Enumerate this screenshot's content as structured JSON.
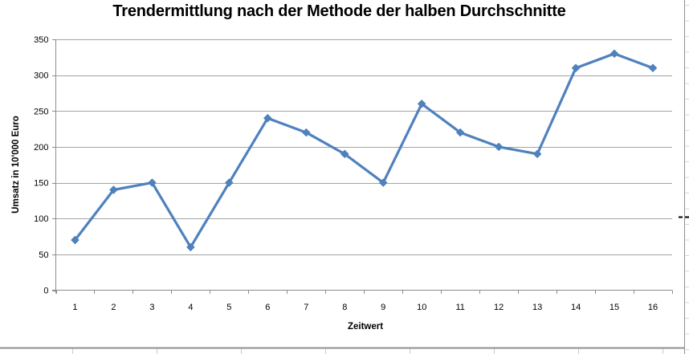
{
  "chart_data": {
    "type": "line",
    "title": "Trendermittlung nach der Methode der halben Durchschnitte",
    "xlabel": "Zeitwert",
    "ylabel": "Umsatz in 10'000 Euro",
    "categories": [
      "1",
      "2",
      "3",
      "4",
      "5",
      "6",
      "7",
      "8",
      "9",
      "10",
      "11",
      "12",
      "13",
      "14",
      "15",
      "16"
    ],
    "values": [
      70,
      140,
      150,
      60,
      150,
      240,
      220,
      190,
      150,
      260,
      220,
      200,
      190,
      310,
      330,
      310
    ],
    "ylim": [
      0,
      350
    ],
    "y_ticks": [
      0,
      50,
      100,
      150,
      200,
      250,
      300,
      350
    ],
    "grid": true,
    "legend": false,
    "marker": "diamond",
    "series_color": "#4F81BD"
  },
  "colors": {
    "series": "#4F81BD",
    "gridline": "#A3A3A3",
    "axis": "#8C8C8C",
    "sheet_row_line": "#CAD4E4",
    "sheet_column_stub": "#C4CCDA",
    "sheet_border": "#8F8F8F",
    "page_break_dash": "#000000",
    "background": "#FFFFFF"
  }
}
